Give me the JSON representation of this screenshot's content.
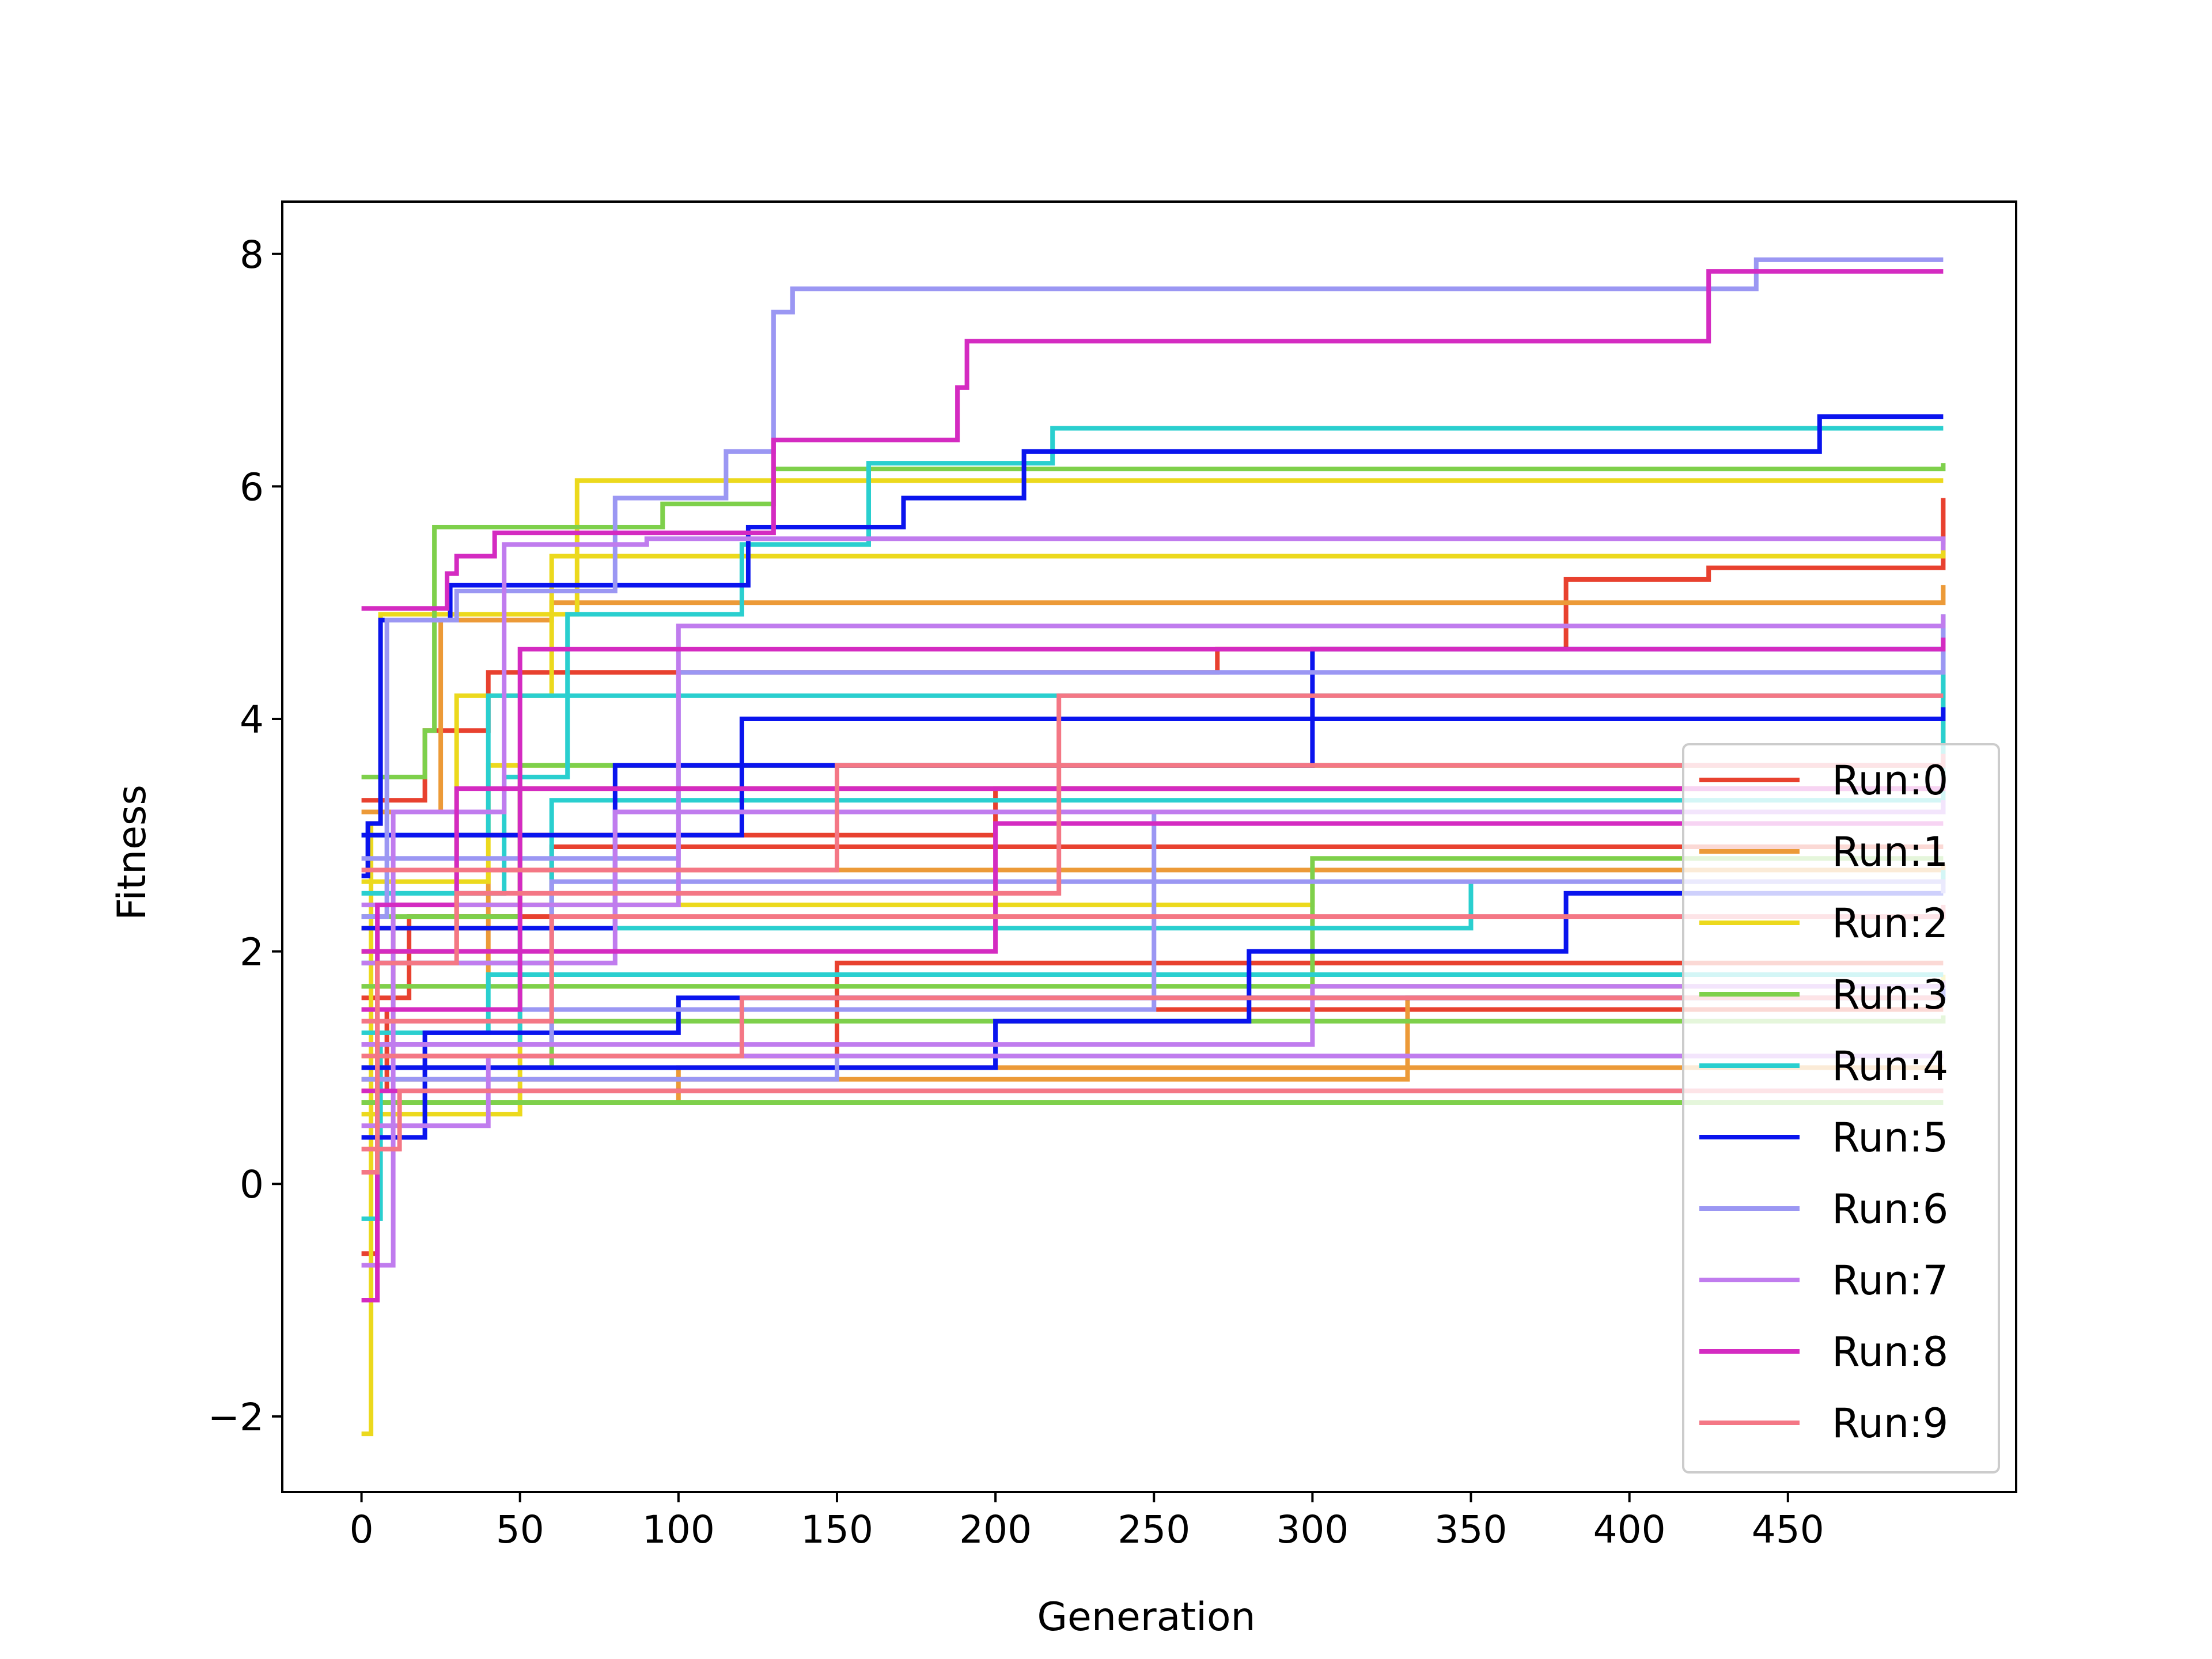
{
  "chart_data": {
    "type": "line",
    "title": "",
    "xlabel": "Generation",
    "ylabel": "Fitness",
    "xlim": [
      -25,
      522
    ],
    "ylim": [
      -2.65,
      8.45
    ],
    "xticks": [
      0,
      50,
      100,
      150,
      200,
      250,
      300,
      350,
      400,
      450
    ],
    "xtick_labels": [
      "0",
      "50",
      "100",
      "150",
      "200",
      "250",
      "300",
      "350",
      "400",
      "450"
    ],
    "yticks": [
      -2,
      0,
      2,
      4,
      6,
      8
    ],
    "ytick_labels": [
      "−2",
      "0",
      "2",
      "4",
      "6",
      "8"
    ],
    "grid": false,
    "legend_position": "lower right",
    "x_range": [
      0,
      499
    ],
    "series": [
      {
        "name": "Run:0",
        "color": "#e8412f",
        "lines": [
          {
            "steps": [
              [
                0,
                3.3
              ],
              [
                20,
                3.9
              ],
              [
                40,
                4.4
              ],
              [
                270,
                4.6
              ],
              [
                380,
                5.2
              ],
              [
                425,
                5.3
              ],
              [
                499,
                5.9
              ]
            ]
          },
          {
            "steps": [
              [
                0,
                1.6
              ],
              [
                15,
                2.3
              ],
              [
                60,
                2.9
              ],
              [
                499,
                2.9
              ]
            ]
          },
          {
            "steps": [
              [
                0,
                -0.6
              ],
              [
                5,
                1.1
              ],
              [
                150,
                1.9
              ],
              [
                499,
                1.9
              ]
            ]
          },
          {
            "steps": [
              [
                0,
                2.0
              ],
              [
                30,
                3.0
              ],
              [
                200,
                3.4
              ],
              [
                499,
                3.6
              ]
            ]
          },
          {
            "steps": [
              [
                0,
                0.8
              ],
              [
                8,
                1.5
              ],
              [
                499,
                1.5
              ]
            ]
          }
        ]
      },
      {
        "name": "Run:1",
        "color": "#ec9a38",
        "lines": [
          {
            "steps": [
              [
                0,
                3.2
              ],
              [
                25,
                4.85
              ],
              [
                60,
                5.0
              ],
              [
                499,
                5.15
              ]
            ]
          },
          {
            "steps": [
              [
                0,
                1.7
              ],
              [
                40,
                2.7
              ],
              [
                499,
                2.75
              ]
            ]
          },
          {
            "steps": [
              [
                0,
                0.7
              ],
              [
                100,
                1.0
              ],
              [
                499,
                1.0
              ]
            ]
          },
          {
            "steps": [
              [
                0,
                2.2
              ],
              [
                50,
                3.4
              ],
              [
                499,
                3.5
              ]
            ]
          },
          {
            "steps": [
              [
                0,
                0.9
              ],
              [
                330,
                1.6
              ],
              [
                499,
                1.6
              ]
            ]
          }
        ]
      },
      {
        "name": "Run:2",
        "color": "#ecd91d",
        "lines": [
          {
            "steps": [
              [
                0,
                -2.15
              ],
              [
                3,
                3.1
              ],
              [
                6,
                4.9
              ],
              [
                68,
                6.05
              ],
              [
                499,
                6.05
              ]
            ]
          },
          {
            "steps": [
              [
                0,
                2.0
              ],
              [
                30,
                4.2
              ],
              [
                60,
                5.4
              ],
              [
                499,
                5.5
              ]
            ]
          },
          {
            "steps": [
              [
                0,
                1.1
              ],
              [
                10,
                2.4
              ],
              [
                300,
                2.6
              ],
              [
                499,
                2.7
              ]
            ]
          },
          {
            "steps": [
              [
                0,
                2.6
              ],
              [
                40,
                3.6
              ],
              [
                499,
                4.4
              ]
            ]
          },
          {
            "steps": [
              [
                0,
                0.6
              ],
              [
                50,
                1.7
              ],
              [
                499,
                1.8
              ]
            ]
          }
        ]
      },
      {
        "name": "Run:3",
        "color": "#7ed04b",
        "lines": [
          {
            "steps": [
              [
                0,
                3.5
              ],
              [
                20,
                3.9
              ],
              [
                23,
                5.65
              ],
              [
                95,
                5.85
              ],
              [
                130,
                6.15
              ],
              [
                499,
                6.2
              ]
            ]
          },
          {
            "steps": [
              [
                0,
                0.7
              ],
              [
                499,
                0.7
              ]
            ]
          },
          {
            "steps": [
              [
                0,
                1.0
              ],
              [
                60,
                1.4
              ],
              [
                499,
                1.45
              ]
            ]
          },
          {
            "steps": [
              [
                0,
                2.3
              ],
              [
                50,
                3.6
              ],
              [
                499,
                3.8
              ]
            ]
          },
          {
            "steps": [
              [
                0,
                1.7
              ],
              [
                300,
                2.8
              ],
              [
                499,
                2.8
              ]
            ]
          }
        ]
      },
      {
        "name": "Run:4",
        "color": "#2acfcf",
        "lines": [
          {
            "steps": [
              [
                0,
                2.5
              ],
              [
                45,
                3.5
              ],
              [
                65,
                4.9
              ],
              [
                120,
                5.5
              ],
              [
                160,
                6.2
              ],
              [
                218,
                6.5
              ],
              [
                499,
                6.5
              ]
            ]
          },
          {
            "steps": [
              [
                0,
                1.9
              ],
              [
                60,
                3.3
              ],
              [
                499,
                4.4
              ]
            ]
          },
          {
            "steps": [
              [
                0,
                -0.3
              ],
              [
                6,
                1.2
              ],
              [
                50,
                2.2
              ],
              [
                350,
                2.6
              ],
              [
                499,
                2.7
              ]
            ]
          },
          {
            "steps": [
              [
                0,
                3.0
              ],
              [
                40,
                4.2
              ],
              [
                499,
                4.9
              ]
            ]
          },
          {
            "steps": [
              [
                0,
                1.3
              ],
              [
                40,
                1.8
              ],
              [
                499,
                1.8
              ]
            ]
          }
        ]
      },
      {
        "name": "Run:5",
        "color": "#0a14ee",
        "lines": [
          {
            "steps": [
              [
                0,
                2.65
              ],
              [
                2,
                3.1
              ],
              [
                6,
                4.85
              ],
              [
                28,
                5.15
              ],
              [
                122,
                5.65
              ],
              [
                171,
                5.9
              ],
              [
                209,
                6.3
              ],
              [
                460,
                6.6
              ],
              [
                499,
                6.6
              ]
            ]
          },
          {
            "steps": [
              [
                0,
                0.4
              ],
              [
                20,
                1.3
              ],
              [
                100,
                1.6
              ],
              [
                499,
                1.7
              ]
            ]
          },
          {
            "steps": [
              [
                0,
                2.2
              ],
              [
                80,
                3.6
              ],
              [
                300,
                4.6
              ],
              [
                499,
                4.6
              ]
            ]
          },
          {
            "steps": [
              [
                0,
                1.0
              ],
              [
                200,
                1.4
              ],
              [
                280,
                2.0
              ],
              [
                380,
                2.5
              ],
              [
                499,
                2.5
              ]
            ]
          },
          {
            "steps": [
              [
                0,
                3.0
              ],
              [
                120,
                4.0
              ],
              [
                499,
                4.1
              ]
            ]
          }
        ]
      },
      {
        "name": "Run:6",
        "color": "#9b97f3",
        "lines": [
          {
            "steps": [
              [
                0,
                2.3
              ],
              [
                8,
                4.85
              ],
              [
                30,
                5.1
              ],
              [
                80,
                5.9
              ],
              [
                115,
                6.3
              ],
              [
                130,
                7.5
              ],
              [
                136,
                7.7
              ],
              [
                440,
                7.95
              ],
              [
                499,
                7.95
              ]
            ]
          },
          {
            "steps": [
              [
                0,
                1.2
              ],
              [
                60,
                2.6
              ],
              [
                499,
                2.5
              ]
            ]
          },
          {
            "steps": [
              [
                0,
                0.9
              ],
              [
                150,
                1.1
              ],
              [
                499,
                1.1
              ]
            ]
          },
          {
            "steps": [
              [
                0,
                2.8
              ],
              [
                100,
                4.4
              ],
              [
                499,
                4.8
              ]
            ]
          },
          {
            "steps": [
              [
                0,
                1.5
              ],
              [
                250,
                3.2
              ],
              [
                499,
                3.3
              ]
            ]
          }
        ]
      },
      {
        "name": "Run:7",
        "color": "#c07cee",
        "lines": [
          {
            "steps": [
              [
                0,
                -0.7
              ],
              [
                10,
                3.2
              ],
              [
                45,
                5.5
              ],
              [
                90,
                5.55
              ],
              [
                499,
                5.45
              ]
            ]
          },
          {
            "steps": [
              [
                0,
                0.5
              ],
              [
                40,
                1.1
              ],
              [
                499,
                1.1
              ]
            ]
          },
          {
            "steps": [
              [
                0,
                2.4
              ],
              [
                100,
                4.8
              ],
              [
                499,
                4.9
              ]
            ]
          },
          {
            "steps": [
              [
                0,
                1.9
              ],
              [
                80,
                3.2
              ],
              [
                499,
                3.3
              ]
            ]
          },
          {
            "steps": [
              [
                0,
                1.2
              ],
              [
                300,
                1.7
              ],
              [
                499,
                1.75
              ]
            ]
          }
        ]
      },
      {
        "name": "Run:8",
        "color": "#d42bc1",
        "lines": [
          {
            "steps": [
              [
                0,
                4.95
              ],
              [
                27,
                5.25
              ],
              [
                30,
                5.4
              ],
              [
                42,
                5.6
              ],
              [
                130,
                6.4
              ],
              [
                188,
                6.85
              ],
              [
                191,
                7.25
              ],
              [
                425,
                7.85
              ],
              [
                499,
                7.85
              ]
            ]
          },
          {
            "steps": [
              [
                0,
                -1.0
              ],
              [
                5,
                2.4
              ],
              [
                30,
                3.4
              ],
              [
                499,
                3.5
              ]
            ]
          },
          {
            "steps": [
              [
                0,
                1.5
              ],
              [
                50,
                4.6
              ],
              [
                499,
                4.7
              ]
            ]
          },
          {
            "steps": [
              [
                0,
                0.8
              ],
              [
                499,
                0.8
              ]
            ]
          },
          {
            "steps": [
              [
                0,
                2.0
              ],
              [
                200,
                3.1
              ],
              [
                499,
                3.1
              ]
            ]
          }
        ]
      },
      {
        "name": "Run:9",
        "color": "#f47785",
        "lines": [
          {
            "steps": [
              [
                0,
                0.1
              ],
              [
                5,
                1.9
              ],
              [
                30,
                2.5
              ],
              [
                220,
                4.2
              ],
              [
                499,
                4.2
              ]
            ]
          },
          {
            "steps": [
              [
                0,
                0.3
              ],
              [
                12,
                0.8
              ],
              [
                499,
                0.8
              ]
            ]
          },
          {
            "steps": [
              [
                0,
                1.4
              ],
              [
                60,
                2.3
              ],
              [
                499,
                2.4
              ]
            ]
          },
          {
            "steps": [
              [
                0,
                2.7
              ],
              [
                150,
                3.6
              ],
              [
                499,
                3.7
              ]
            ]
          },
          {
            "steps": [
              [
                0,
                1.1
              ],
              [
                120,
                1.6
              ],
              [
                499,
                1.6
              ]
            ]
          }
        ]
      }
    ]
  }
}
